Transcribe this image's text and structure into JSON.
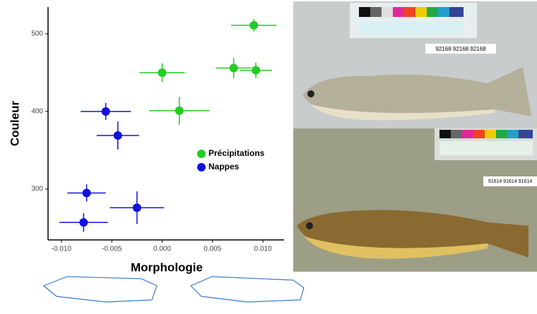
{
  "chart_data": {
    "type": "scatter",
    "xlabel": "Morphologie",
    "ylabel": "Couleur",
    "xlim": [
      -0.01133,
      0.0121
    ],
    "ylim": [
      234.5,
      534.5
    ],
    "xticks": [
      {
        "value": -0.01,
        "label": "-0.010"
      },
      {
        "value": -0.005,
        "label": "-0.005"
      },
      {
        "value": 0,
        "label": "0.000"
      },
      {
        "value": 0.005,
        "label": "0.005"
      },
      {
        "value": 0.01,
        "label": "0.010"
      }
    ],
    "yticks": [
      300,
      400,
      500
    ],
    "legend": "right",
    "series": [
      {
        "name": "Précipitations",
        "color": "#22cc22",
        "x": [
          0.0091,
          0.0,
          0.0071,
          0.0093,
          0.0017
        ],
        "values": [
          511,
          450,
          456,
          453,
          401
        ],
        "xerr": [
          0.00225,
          0.00225,
          0.00175,
          0.0016,
          0.003
        ],
        "yerr": [
          8,
          12,
          13,
          10,
          18
        ]
      },
      {
        "name": "Nappes",
        "color": "#1111dd",
        "x": [
          -0.0056,
          -0.0044,
          -0.0075,
          -0.0025,
          -0.0078
        ],
        "values": [
          400,
          369,
          295,
          276,
          257
        ],
        "xerr": [
          0.0025,
          0.0021,
          0.0019,
          0.0027,
          0.0024
        ],
        "yerr": [
          11,
          18,
          11,
          21,
          12
        ]
      }
    ]
  },
  "photos": [
    {
      "tag": "92168  92168  92168"
    },
    {
      "tag": "91614  91614  91614"
    }
  ]
}
